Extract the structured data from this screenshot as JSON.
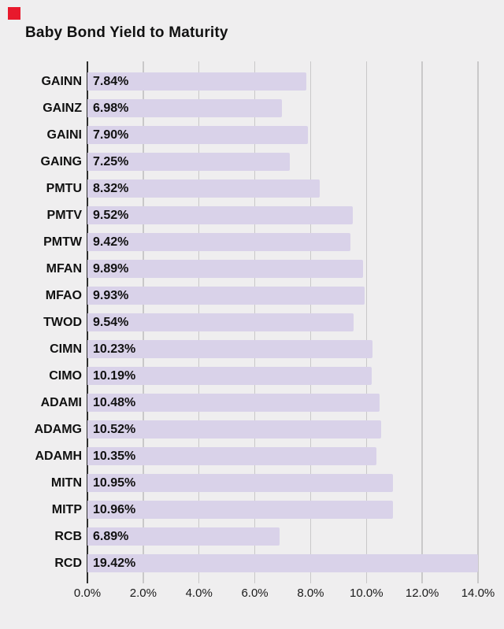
{
  "chart_data": {
    "type": "bar",
    "orientation": "horizontal",
    "title": "Baby Bond Yield to Maturity",
    "categories": [
      "GAINN",
      "GAINZ",
      "GAINI",
      "GAING",
      "PMTU",
      "PMTV",
      "PMTW",
      "MFAN",
      "MFAO",
      "TWOD",
      "CIMN",
      "CIMO",
      "ADAMI",
      "ADAMG",
      "ADAMH",
      "MITN",
      "MITP",
      "RCB",
      "RCD"
    ],
    "values": [
      7.84,
      6.98,
      7.9,
      7.25,
      8.32,
      9.52,
      9.42,
      9.89,
      9.93,
      9.54,
      10.23,
      10.19,
      10.48,
      10.52,
      10.35,
      10.95,
      10.96,
      6.89,
      19.42
    ],
    "value_labels": [
      "7.84%",
      "6.98%",
      "7.90%",
      "7.25%",
      "8.32%",
      "9.52%",
      "9.42%",
      "9.89%",
      "9.93%",
      "9.54%",
      "10.23%",
      "10.19%",
      "10.48%",
      "10.52%",
      "10.35%",
      "10.95%",
      "10.96%",
      "6.89%",
      "19.42%"
    ],
    "xlabel": "",
    "ylabel": "",
    "xlim": [
      0,
      14
    ],
    "x_tick_values": [
      0,
      2,
      4,
      6,
      8,
      10,
      12,
      14
    ],
    "x_tick_labels": [
      "0.0%",
      "2.0%",
      "4.0%",
      "6.0%",
      "8.0%",
      "10.0%",
      "12.0%",
      "14.0%"
    ],
    "grid": "vertical",
    "legend": "none",
    "value_labels_position": "inside-left",
    "bars_clipped_at_xmax": [
      "RCD"
    ],
    "colors": {
      "background": "#efeeef",
      "bar": "#d9d2e9",
      "gridline": "#c9c8c9",
      "zero_axis": "#2e2e2e",
      "text": "#111111",
      "marker": "#e8192c"
    }
  }
}
